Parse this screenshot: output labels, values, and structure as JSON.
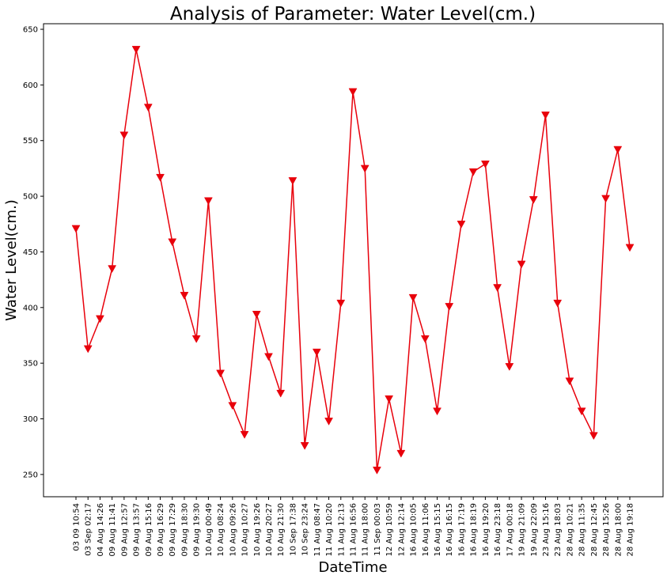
{
  "chart_data": {
    "type": "line",
    "title": "Analysis of Parameter: Water Level(cm.)",
    "xlabel": "DateTime",
    "ylabel": "Water Level(cm.)",
    "ylim": [
      230,
      655
    ],
    "yticks": [
      250,
      300,
      350,
      400,
      450,
      500,
      550,
      600,
      650
    ],
    "grid": false,
    "legend": "none",
    "series_color": "#e8000b",
    "marker": "triangle-down",
    "categories": [
      "03 09 10:54",
      "03 Sep 02:17",
      "04 Aug 14:26",
      "09 Aug 11:41",
      "09 Aug 12:57",
      "09 Aug 13:57",
      "09 Aug 15:16",
      "09 Aug 16:29",
      "09 Aug 17:29",
      "09 Aug 18:30",
      "09 Aug 19:30",
      "10 Aug 00:49",
      "10 Aug 08:24",
      "10 Aug 09:26",
      "10 Aug 10:27",
      "10 Aug 19:26",
      "10 Aug 20:27",
      "10 Aug 21:30",
      "10 Sep 17:38",
      "10 Sep 23:24",
      "11 Aug 08:47",
      "11 Aug 10:20",
      "11 Aug 12:13",
      "11 Aug 16:56",
      "11 Aug 18:00",
      "11 Sep 00:03",
      "12 Aug 10:59",
      "12 Aug 12:14",
      "16 Aug 10:05",
      "16 Aug 11:06",
      "16 Aug 15:15",
      "16 Aug 16:15",
      "16 Aug 17:19",
      "16 Aug 18:19",
      "16 Aug 19:20",
      "16 Aug 23:18",
      "17 Aug 00:18",
      "19 Aug 21:09",
      "19 Aug 22:09",
      "23 Aug 15:16",
      "23 Aug 18:03",
      "28 Aug 10:21",
      "28 Aug 11:35",
      "28 Aug 12:45",
      "28 Aug 15:26",
      "28 Aug 18:00",
      "28 Aug 19:18"
    ],
    "values": [
      471,
      363,
      390,
      435,
      555,
      632,
      580,
      517,
      459,
      411,
      372,
      496,
      341,
      312,
      286,
      394,
      356,
      323,
      514,
      276,
      360,
      298,
      404,
      594,
      525,
      254,
      318,
      269,
      409,
      372,
      307,
      401,
      475,
      522,
      529,
      418,
      347,
      439,
      497,
      573,
      404,
      334,
      307,
      285,
      498,
      542,
      454
    ]
  }
}
